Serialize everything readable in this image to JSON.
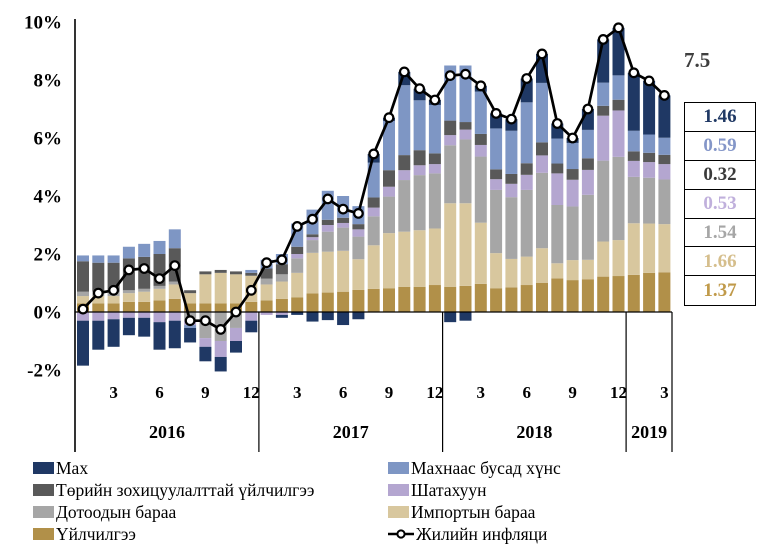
{
  "chart_data": {
    "type": "bar",
    "subtype": "stacked-bar-with-line",
    "title": "",
    "xlabel": "",
    "ylabel": "",
    "ylim": [
      -2,
      10
    ],
    "grid": false,
    "categories": [
      "2016-01",
      "2016-02",
      "2016-03",
      "2016-04",
      "2016-05",
      "2016-06",
      "2016-07",
      "2016-08",
      "2016-09",
      "2016-10",
      "2016-11",
      "2016-12",
      "2017-01",
      "2017-02",
      "2017-03",
      "2017-04",
      "2017-05",
      "2017-06",
      "2017-07",
      "2017-08",
      "2017-09",
      "2017-10",
      "2017-11",
      "2017-12",
      "2018-01",
      "2018-02",
      "2018-03",
      "2018-04",
      "2018-05",
      "2018-06",
      "2018-07",
      "2018-08",
      "2018-09",
      "2018-10",
      "2018-11",
      "2018-12",
      "2019-01",
      "2019-02",
      "2019-03"
    ],
    "series": [
      {
        "name": "Үйлчилгээ",
        "color": "#B19049",
        "values": [
          0.3,
          0.3,
          0.3,
          0.35,
          0.35,
          0.4,
          0.45,
          0.3,
          0.3,
          0.3,
          0.3,
          0.35,
          0.4,
          0.45,
          0.5,
          0.64,
          0.67,
          0.7,
          0.76,
          0.8,
          0.82,
          0.87,
          0.87,
          0.93,
          0.87,
          0.9,
          0.97,
          0.82,
          0.85,
          0.93,
          1.0,
          1.16,
          1.1,
          1.13,
          1.22,
          1.24,
          1.28,
          1.35,
          1.37
        ]
      },
      {
        "name": "Импортын бараа",
        "color": "#D8C79E",
        "values": [
          0.25,
          0.25,
          0.25,
          0.3,
          0.35,
          0.4,
          0.5,
          0.35,
          1.0,
          1.05,
          1.0,
          0.9,
          0.55,
          0.6,
          0.85,
          1.4,
          1.41,
          1.41,
          1.06,
          1.5,
          1.9,
          1.9,
          1.95,
          1.95,
          2.88,
          2.85,
          2.11,
          1.21,
          0.98,
          0.98,
          1.2,
          0.52,
          0.69,
          0.67,
          1.21,
          1.24,
          1.78,
          1.7,
          1.66
        ]
      },
      {
        "name": "Дотоодын бараа",
        "color": "#A6A6A6",
        "values": [
          0.15,
          0.15,
          0.15,
          0.1,
          0.1,
          0.1,
          0.1,
          -0.3,
          -0.9,
          -1.0,
          -0.55,
          0.0,
          0.2,
          0.25,
          0.5,
          0.44,
          0.69,
          0.8,
          0.78,
          1.0,
          1.26,
          1.78,
          1.9,
          1.9,
          2.0,
          2.2,
          2.28,
          2.18,
          2.13,
          2.3,
          2.6,
          2.01,
          1.85,
          2.24,
          2.79,
          2.87,
          1.6,
          1.58,
          1.54
        ]
      },
      {
        "name": "Шатахуун",
        "color": "#B4A6D0",
        "values": [
          -0.3,
          -0.3,
          -0.25,
          -0.2,
          -0.2,
          -0.35,
          -0.3,
          -0.15,
          -0.3,
          -0.55,
          -0.45,
          -0.3,
          -0.1,
          -0.1,
          0.15,
          0.1,
          0.23,
          0.16,
          0.25,
          0.3,
          0.34,
          0.34,
          0.34,
          0.32,
          0.35,
          0.34,
          0.4,
          0.37,
          0.46,
          0.52,
          0.6,
          1.09,
          0.92,
          0.86,
          1.55,
          1.6,
          0.55,
          0.54,
          0.53
        ]
      },
      {
        "name": "Төрийн зохицуулалттай үйлчилгээ",
        "color": "#595959",
        "values": [
          1.05,
          1.0,
          1.0,
          1.1,
          1.1,
          1.1,
          1.15,
          0.1,
          0.1,
          0.1,
          0.1,
          0.1,
          0.35,
          0.35,
          0.25,
          0.1,
          0.18,
          0.18,
          0.18,
          0.35,
          0.57,
          0.52,
          0.52,
          0.37,
          0.5,
          0.26,
          0.38,
          0.34,
          0.34,
          0.4,
          0.45,
          0.34,
          0.37,
          0.4,
          0.34,
          0.37,
          0.33,
          0.32,
          0.32
        ]
      },
      {
        "name": "Махнаас бусад хүнс",
        "color": "#7E96C4",
        "values": [
          0.2,
          0.25,
          0.25,
          0.4,
          0.45,
          0.45,
          0.65,
          -0.1,
          0.0,
          0.0,
          0.0,
          0.1,
          0.3,
          0.35,
          0.8,
          0.85,
          1.0,
          0.75,
          0.62,
          1.2,
          1.7,
          2.41,
          1.72,
          1.67,
          1.9,
          1.95,
          1.46,
          1.41,
          1.49,
          2.1,
          2.05,
          0.86,
          0.9,
          0.98,
          0.8,
          0.84,
          0.71,
          0.63,
          0.59
        ]
      },
      {
        "name": "Мах",
        "color": "#1F3864",
        "values": [
          -1.55,
          -1.0,
          -0.95,
          -0.6,
          -0.65,
          -0.95,
          -0.95,
          -0.5,
          -0.5,
          -0.5,
          -0.4,
          -0.4,
          0.0,
          -0.1,
          -0.1,
          -0.33,
          -0.28,
          -0.45,
          -0.25,
          0.3,
          0.11,
          0.46,
          0.4,
          0.17,
          -0.35,
          -0.3,
          0.2,
          0.52,
          0.4,
          0.82,
          1.0,
          0.52,
          0.17,
          0.72,
          1.49,
          1.64,
          2.0,
          1.85,
          1.46
        ]
      }
    ],
    "line": {
      "name": "Жилийн инфляци",
      "color": "#000000",
      "marker": "open-circle",
      "values": [
        0.1,
        0.65,
        0.75,
        1.45,
        1.5,
        1.15,
        1.6,
        -0.3,
        -0.3,
        -0.6,
        0.0,
        0.75,
        1.7,
        1.8,
        2.95,
        3.2,
        3.9,
        3.55,
        3.4,
        5.45,
        6.7,
        8.28,
        7.7,
        7.31,
        8.15,
        8.2,
        7.8,
        6.85,
        6.65,
        8.05,
        8.9,
        6.5,
        6.0,
        7.0,
        9.4,
        9.8,
        8.25,
        7.97,
        7.47
      ]
    },
    "yAxis": {
      "ticks": [
        {
          "label": "10%",
          "value": 10
        },
        {
          "label": "8%",
          "value": 8
        },
        {
          "label": "6%",
          "value": 6
        },
        {
          "label": "4%",
          "value": 4
        },
        {
          "label": "2%",
          "value": 2
        },
        {
          "label": "0%",
          "value": 0
        },
        {
          "label": "-2%",
          "value": -2
        }
      ]
    },
    "xAxis": {
      "years": [
        {
          "label": "2016",
          "start_index": 0,
          "month_ticks": [
            3,
            6,
            9,
            12
          ]
        },
        {
          "label": "2017",
          "start_index": 12,
          "month_ticks": [
            3,
            6,
            9,
            12
          ]
        },
        {
          "label": "2018",
          "start_index": 24,
          "month_ticks": [
            3,
            6,
            9,
            12
          ]
        },
        {
          "label": "2019",
          "start_index": 36,
          "month_ticks": [
            3
          ]
        }
      ]
    },
    "annotation": {
      "total_label": "7.5"
    },
    "right_labels": [
      {
        "value": "1.46",
        "series": "Мах",
        "color": "#1F3864"
      },
      {
        "value": "0.59",
        "series": "Махнаас бусад хүнс",
        "color": "#8496C8"
      },
      {
        "value": "0.32",
        "series": "Төрийн зохицуулалттай үйлчилгээ",
        "color": "#3A3A3A"
      },
      {
        "value": "0.53",
        "series": "Шатахуун",
        "color": "#C0B0DC"
      },
      {
        "value": "1.54",
        "series": "Дотоодын бараа",
        "color": "#A6A6A6"
      },
      {
        "value": "1.66",
        "series": "Импортын бараа",
        "color": "#D5BE8C"
      },
      {
        "value": "1.37",
        "series": "Үйлчилгээ",
        "color": "#C09A4A"
      }
    ],
    "legend": {
      "columns": [
        {
          "items": [
            {
              "label": "Мах",
              "color": "#1F3864",
              "marker": "swatch"
            },
            {
              "label": "Төрийн зохицуулалттай үйлчилгээ",
              "color": "#595959",
              "marker": "swatch"
            },
            {
              "label": "Дотоодын бараа",
              "color": "#A6A6A6",
              "marker": "swatch"
            },
            {
              "label": "Үйлчилгээ",
              "color": "#B19049",
              "marker": "swatch"
            }
          ]
        },
        {
          "items": [
            {
              "label": "Махнаас бусад хүнс",
              "color": "#7E96C4",
              "marker": "swatch"
            },
            {
              "label": "Шатахуун",
              "color": "#B4A6D0",
              "marker": "swatch"
            },
            {
              "label": "Импортын бараа",
              "color": "#D8C79E",
              "marker": "swatch"
            },
            {
              "label": "Жилийн инфляци",
              "color": "#000000",
              "marker": "line-circle"
            }
          ]
        }
      ]
    }
  }
}
